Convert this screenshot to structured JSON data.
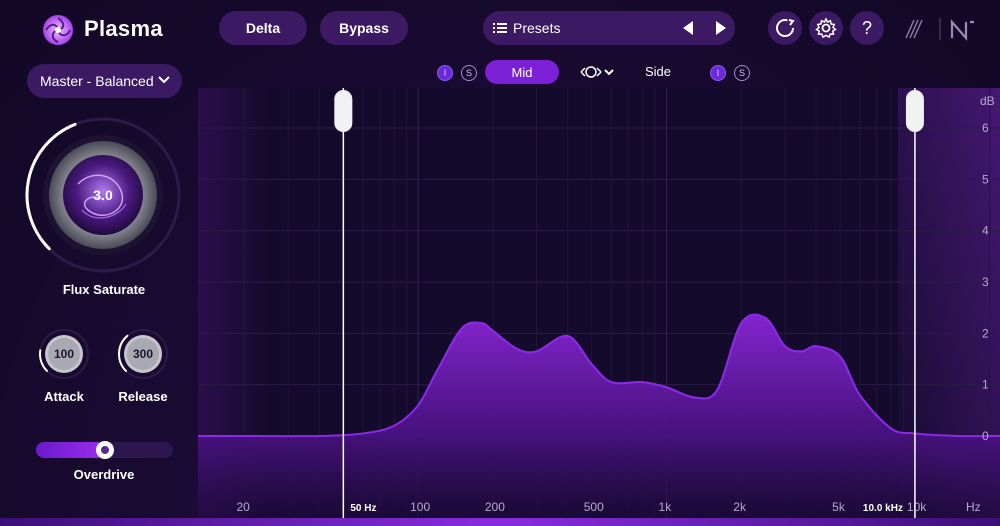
{
  "app": {
    "name": "Plasma"
  },
  "toolbar": {
    "delta_label": "Delta",
    "bypass_label": "Bypass",
    "presets_label": "Presets",
    "icons": [
      "loop-icon",
      "gear-icon",
      "help-icon"
    ],
    "help_glyph": "?"
  },
  "left_panel": {
    "preset_value": "Master - Balanced",
    "main_knob": {
      "label": "Flux Saturate",
      "value": "3.0",
      "level": 0.42
    },
    "attack": {
      "label": "Attack",
      "value": "100",
      "level": 0.2
    },
    "release": {
      "label": "Release",
      "value": "300",
      "level": 0.35
    },
    "overdrive": {
      "label": "Overdrive",
      "level": 0.5
    }
  },
  "band_bar": {
    "mid_label": "Mid",
    "side_label": "Side",
    "mid_i": "I",
    "mid_s": "S",
    "side_i": "I",
    "side_s": "S"
  },
  "analyzer": {
    "db_unit": "dB",
    "db_ticks": [
      "6",
      "5",
      "4",
      "3",
      "2",
      "1",
      "0"
    ],
    "hz_unit": "Hz",
    "freq_ticks": [
      "20",
      "100",
      "200",
      "500",
      "1k",
      "2k",
      "5k",
      "10k"
    ],
    "low_handle_label": "50 Hz",
    "high_handle_label": "10.0 kHz",
    "colors": {
      "curve": "#8b2be8",
      "fill_top": "#7a1fc8",
      "handle": "#ffffff"
    }
  },
  "chart_data": {
    "type": "area",
    "x": [
      20,
      40,
      60,
      80,
      100,
      120,
      150,
      180,
      200,
      250,
      300,
      400,
      500,
      600,
      800,
      1000,
      1300,
      1600,
      2000,
      2500,
      3000,
      3500,
      4000,
      5000,
      6000,
      8000,
      10000,
      15000,
      20000
    ],
    "values": [
      0,
      0,
      0.05,
      0.2,
      0.6,
      1.3,
      2.1,
      2.2,
      2.05,
      1.7,
      1.65,
      1.95,
      1.4,
      1.05,
      1.05,
      0.95,
      0.75,
      0.9,
      2.2,
      2.3,
      1.75,
      1.65,
      1.75,
      1.55,
      0.8,
      0.15,
      0.05,
      0,
      0
    ],
    "xscale": "log",
    "ylim": [
      0,
      6
    ],
    "ylabel": "dB",
    "xlabel": "Hz",
    "grid": true
  }
}
